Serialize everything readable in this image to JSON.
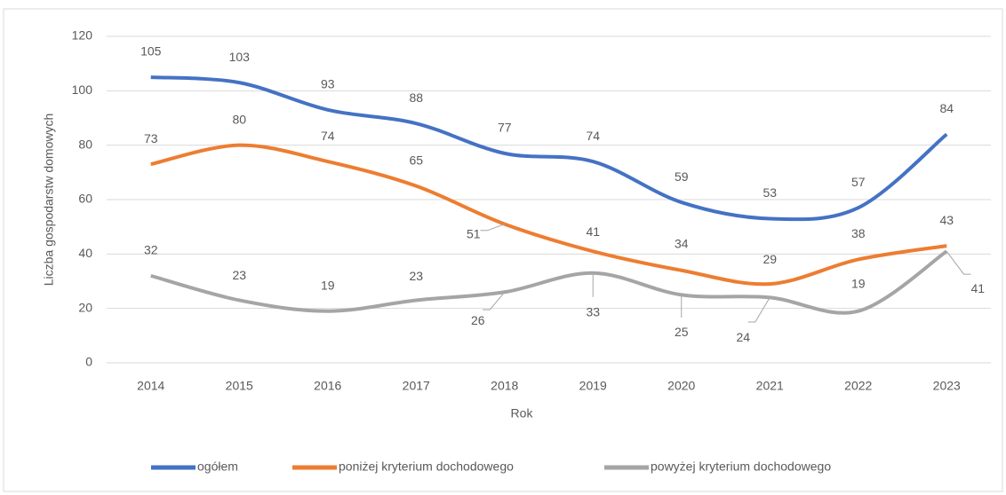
{
  "chart_data": {
    "type": "line",
    "x_label": "Rok",
    "y_label": "Liczba gospodarstw domowych",
    "categories": [
      "2014",
      "2015",
      "2016",
      "2017",
      "2018",
      "2019",
      "2020",
      "2021",
      "2022",
      "2023"
    ],
    "series": [
      {
        "name": "ogółem",
        "color": "#4472c4",
        "values": [
          105,
          103,
          93,
          88,
          77,
          74,
          59,
          53,
          57,
          84
        ]
      },
      {
        "name": "poniżej kryterium dochodowego",
        "color": "#ed7d31",
        "values": [
          73,
          80,
          74,
          65,
          51,
          41,
          34,
          29,
          38,
          43
        ]
      },
      {
        "name": "powyżej kryterium dochodowego",
        "color": "#a5a5a5",
        "values": [
          32,
          23,
          19,
          23,
          26,
          33,
          25,
          24,
          19,
          41
        ]
      }
    ],
    "ylim": [
      0,
      120
    ],
    "yticks": [
      0,
      20,
      40,
      60,
      80,
      100,
      120
    ],
    "grid": true,
    "legend": "bottom"
  }
}
